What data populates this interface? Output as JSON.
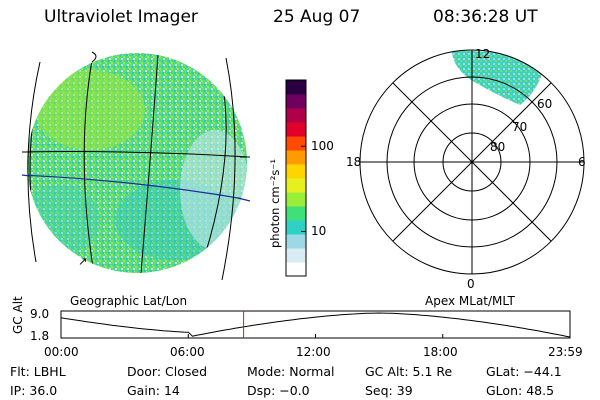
{
  "header": {
    "instrument": "Ultraviolet Imager",
    "date": "25 Aug 07",
    "time": "08:36:28 UT"
  },
  "colorbar": {
    "label": "photon cm⁻²s⁻¹",
    "ticks": [
      "100",
      "10"
    ],
    "tick_values": [
      100,
      10
    ],
    "range": [
      3,
      600
    ],
    "scale": "log",
    "colors": [
      "#ffffff",
      "#d8ecf4",
      "#9cd8e6",
      "#2fd0c6",
      "#3fe07a",
      "#9aee3a",
      "#e6f020",
      "#ffd400",
      "#ff9a00",
      "#ff4a00",
      "#e0002a",
      "#b0004a",
      "#700060",
      "#2a0040"
    ]
  },
  "polar": {
    "label": "Apex MLat/MLT",
    "mlt_labels": {
      "top": "12",
      "left": "18",
      "right": "6",
      "bottom": "0"
    },
    "lat_labels": [
      {
        "text": "60",
        "value": 60
      },
      {
        "text": "70",
        "value": 70
      },
      {
        "text": "80",
        "value": 80
      }
    ]
  },
  "map": {
    "label": "Geographic Lat/Lon",
    "marker_glyph": "↗"
  },
  "altitude_plot": {
    "ylabel": "GC Alt",
    "yticks": [
      "9.0",
      "1.8"
    ],
    "xticks": [
      "00:00",
      "06:00",
      "12:00",
      "18:00",
      "23:59"
    ],
    "current_time_hours": 8.61,
    "marker_color": "#d02020"
  },
  "info": {
    "row1": [
      {
        "label": "Flt:",
        "value": "LBHL"
      },
      {
        "label": "Door:",
        "value": "Closed"
      },
      {
        "label": "Mode:",
        "value": "Normal"
      },
      {
        "label": "GC Alt:",
        "value": "5.1 Re"
      },
      {
        "label": "GLat:",
        "value": "−44.1"
      }
    ],
    "row2": [
      {
        "label": "IP:",
        "value": "36.0"
      },
      {
        "label": "Gain:",
        "value": "14"
      },
      {
        "label": "Dsp:",
        "value": "−0.0"
      },
      {
        "label": "Seq:",
        "value": "39"
      },
      {
        "label": "GLon:",
        "value": "48.5"
      }
    ]
  }
}
